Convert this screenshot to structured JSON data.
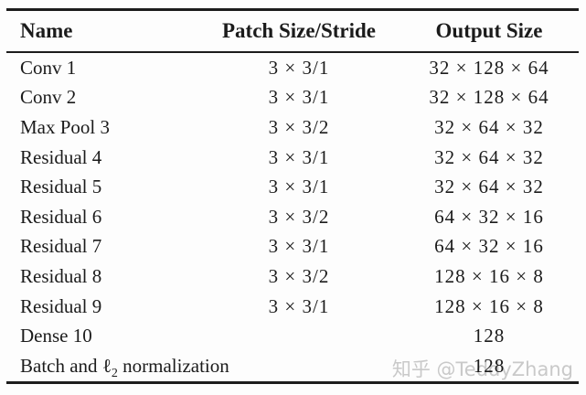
{
  "colors": {
    "background": "#fdfdfd",
    "text": "#1b1b1b",
    "rule": "#1c1c1c",
    "watermark": "#c9c9c9"
  },
  "table": {
    "columns": [
      {
        "label": "Name",
        "align": "left"
      },
      {
        "label": "Patch Size/Stride",
        "align": "center"
      },
      {
        "label": "Output Size",
        "align": "center"
      }
    ],
    "rows": [
      {
        "name": "Conv 1",
        "patch": "3 × 3/1",
        "output": "32 × 128 × 64"
      },
      {
        "name": "Conv 2",
        "patch": "3 × 3/1",
        "output": "32 × 128 × 64"
      },
      {
        "name": "Max Pool 3",
        "patch": "3 × 3/2",
        "output": "32 × 64 × 32"
      },
      {
        "name": "Residual 4",
        "patch": "3 × 3/1",
        "output": "32 × 64 × 32"
      },
      {
        "name": "Residual 5",
        "patch": "3 × 3/1",
        "output": "32 × 64 × 32"
      },
      {
        "name": "Residual 6",
        "patch": "3 × 3/2",
        "output": "64 × 32 × 16"
      },
      {
        "name": "Residual 7",
        "patch": "3 × 3/1",
        "output": "64 × 32 × 16"
      },
      {
        "name": "Residual 8",
        "patch": "3 × 3/2",
        "output": "128 × 16 × 8"
      },
      {
        "name": "Residual 9",
        "patch": "3 × 3/1",
        "output": "128 × 16 × 8"
      },
      {
        "name": "Dense 10",
        "patch": "",
        "output": "128"
      },
      {
        "name_prefix": "Batch and ",
        "name_symbol": "ℓ",
        "name_subscript": "2",
        "name_suffix": " normalization",
        "patch": "",
        "output": "128"
      }
    ]
  },
  "watermark": {
    "text": "知乎 @TeddyZhang"
  }
}
